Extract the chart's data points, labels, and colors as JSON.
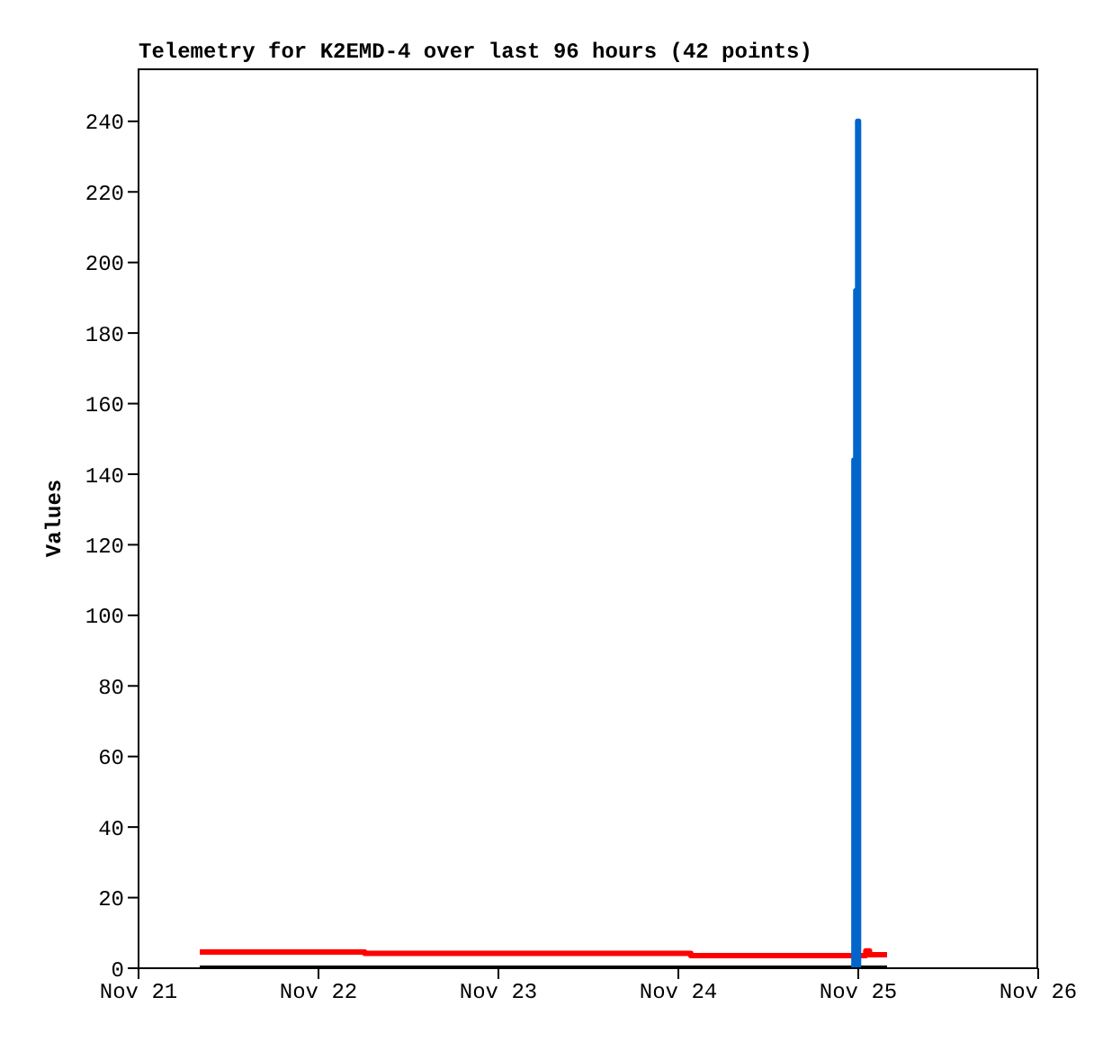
{
  "chart_data": {
    "type": "line",
    "title": "Telemetry for K2EMD-4 over last 96 hours (42 points)",
    "ylabel": "Values",
    "xlim": [
      "--11-21",
      "--11-26"
    ],
    "xticks": [
      {
        "value": "--11-21",
        "label": "Nov 21"
      },
      {
        "value": "--11-22",
        "label": "Nov 22"
      },
      {
        "value": "--11-23",
        "label": "Nov 23"
      },
      {
        "value": "--11-24",
        "label": "Nov 24"
      },
      {
        "value": "--11-25",
        "label": "Nov 25"
      },
      {
        "value": "--11-26",
        "label": "Nov 26"
      }
    ],
    "ylim": [
      0,
      255
    ],
    "yticks": [
      0,
      20,
      40,
      60,
      80,
      100,
      120,
      140,
      160,
      180,
      200,
      220,
      240
    ],
    "marker": "none",
    "series": [
      {
        "type": "step",
        "color": "#ff0000",
        "x": [
          "--11-21T08:10",
          "--11-22T06:10",
          "--11-24T01:40",
          "--11-24T23:00",
          "--11-25T01:00",
          "--11-25T01:30",
          "--11-25T03:50"
        ],
        "values": [
          4.6,
          4.2,
          3.6,
          3.6,
          4.9,
          3.8,
          3.8
        ]
      },
      {
        "color": "#000000",
        "x": [
          "--11-21T08:10",
          "--11-25T03:50"
        ],
        "values": [
          0,
          0
        ]
      },
      {
        "type": "step",
        "color": "#0066cc",
        "x": [
          "--11-24T23:20",
          "--11-24T23:25",
          "--11-24T23:40",
          "--11-24T23:55",
          "--11-25T00:02"
        ],
        "values": [
          0,
          144,
          192,
          240,
          0
        ]
      }
    ]
  }
}
